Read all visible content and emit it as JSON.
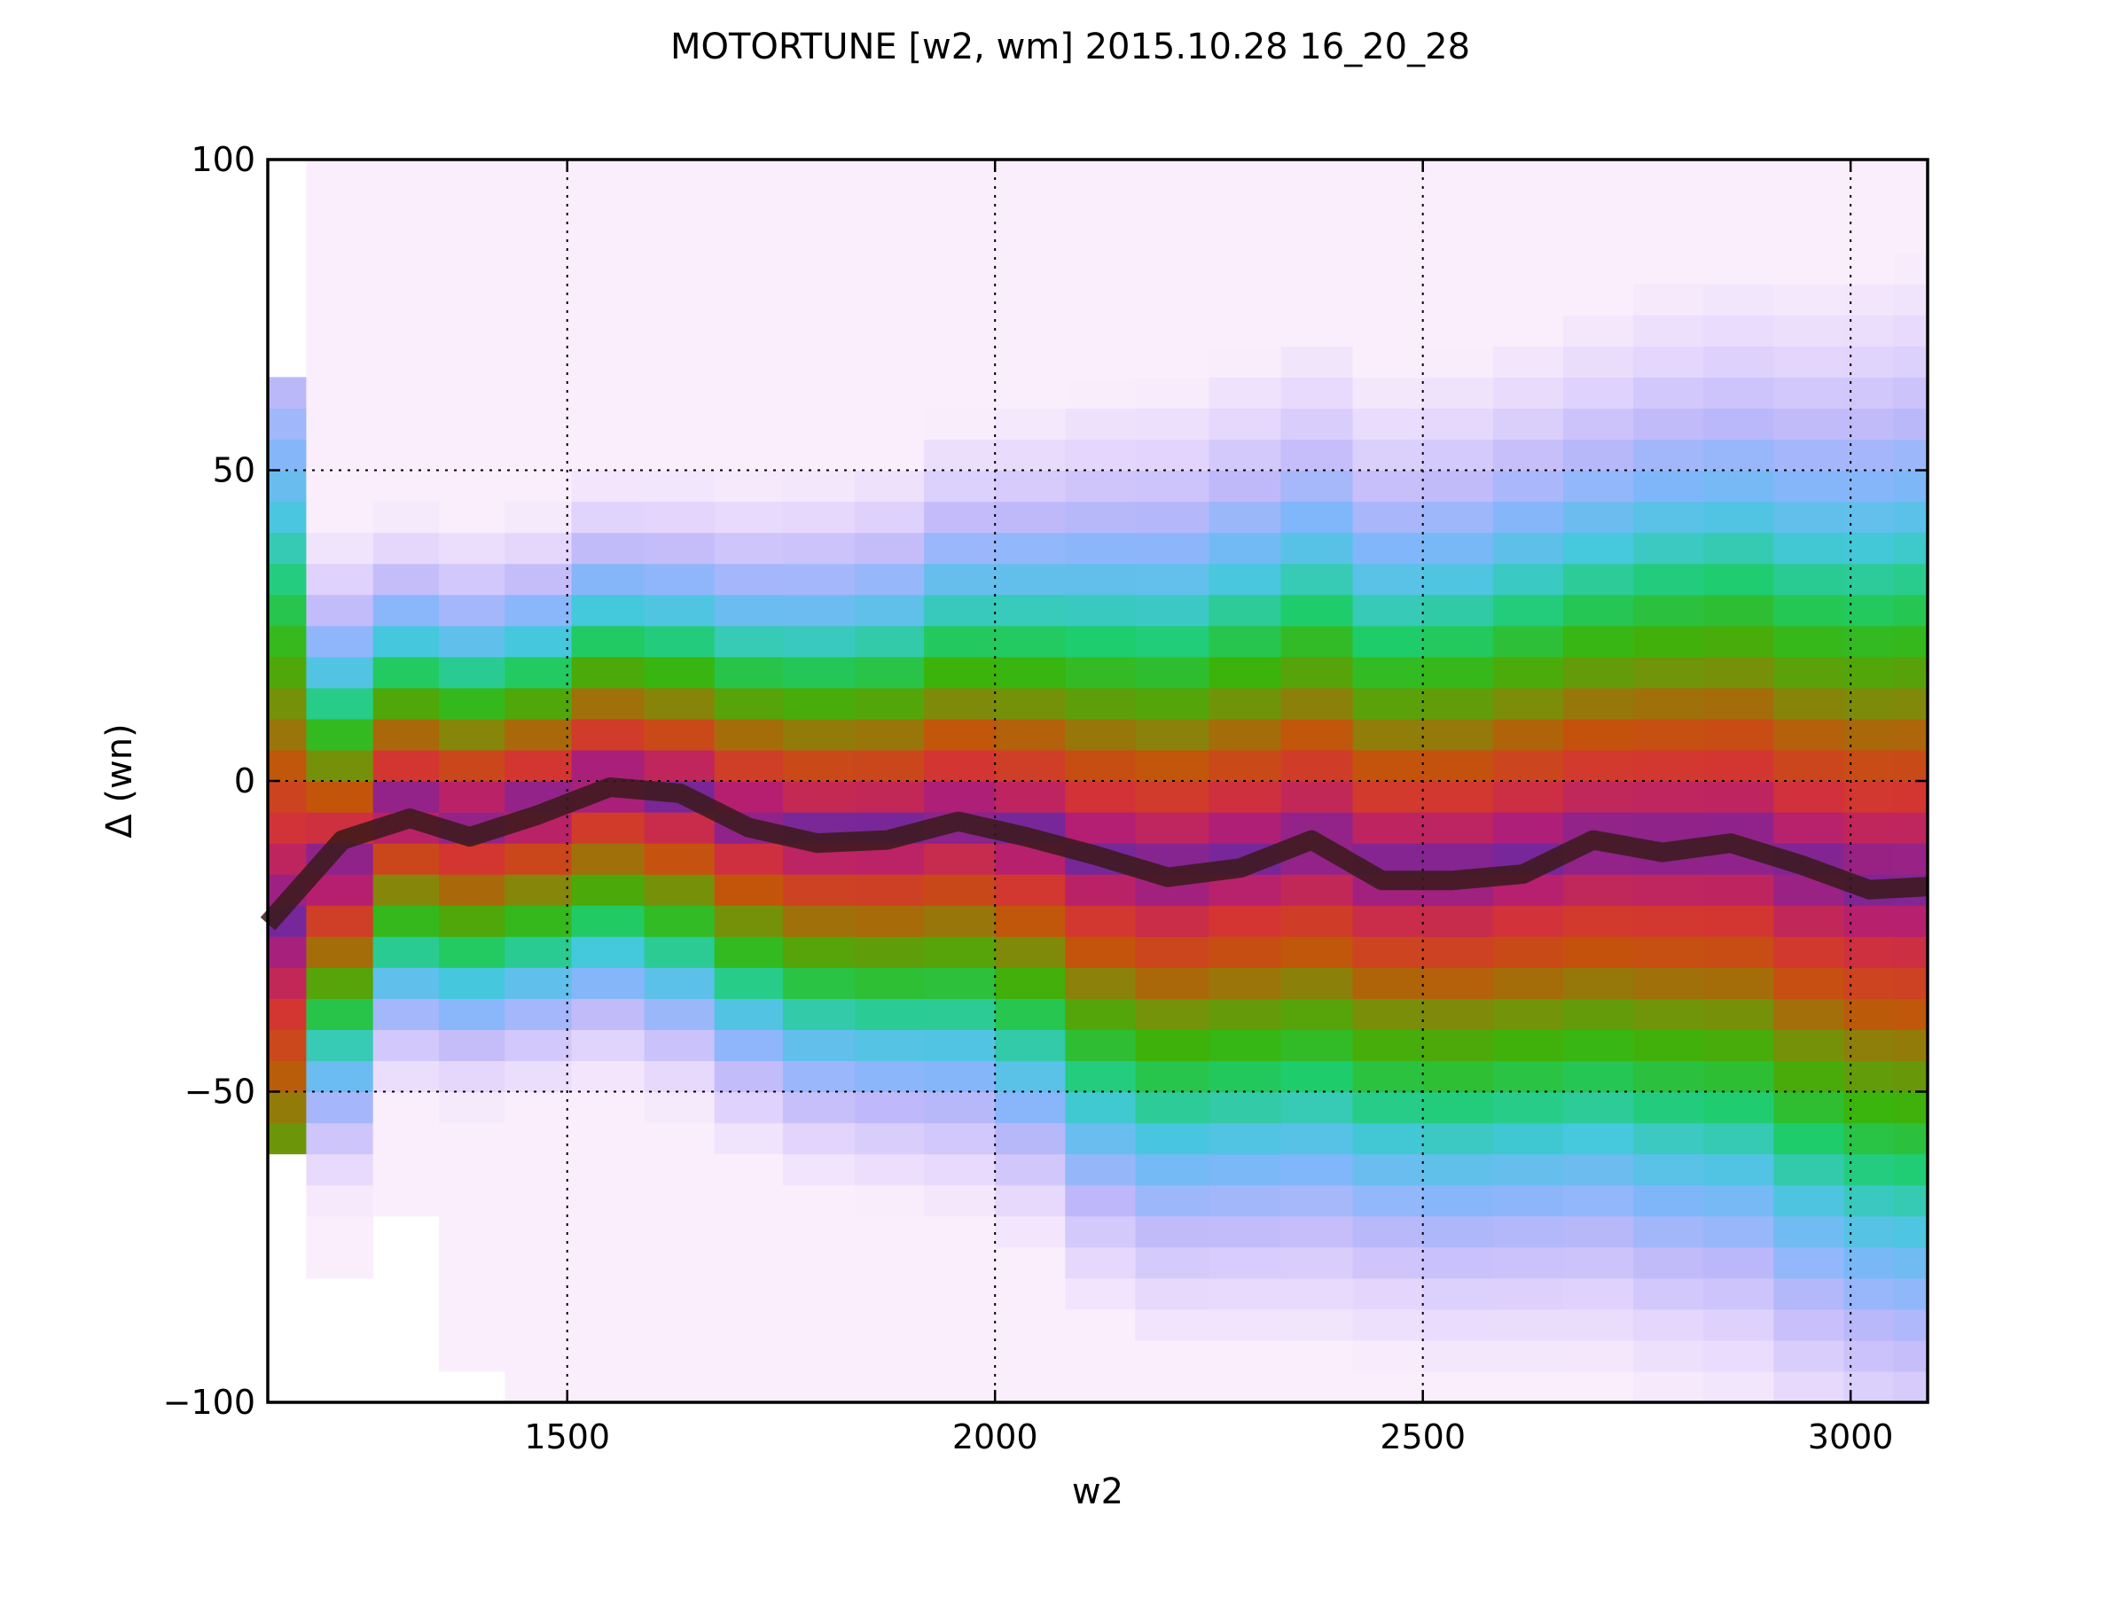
{
  "chart_data": {
    "type": "heatmap",
    "title": "MOTORTUNE [w2, wm] 2015.10.28 16_20_28",
    "xlabel": "w2",
    "ylabel": "Δ (wn)",
    "xlim": [
      1150,
      3090
    ],
    "ylim": [
      -100,
      100
    ],
    "xticks": [
      1500,
      2000,
      2500,
      3000
    ],
    "xtick_labels": [
      "1500",
      "2000",
      "2500",
      "3000"
    ],
    "yticks": [
      100,
      50,
      0,
      -50,
      -100
    ],
    "ytick_labels": [
      "100",
      "50",
      "0",
      "−50",
      "−100"
    ],
    "grid": true,
    "colormap": "white → lavender → blue → cyan → green → olive → orange → red → crimson → purple",
    "heatmap_columns": [
      {
        "x0": 1150,
        "x1": 1195,
        "lo": -58,
        "hi": 66,
        "half": 115,
        "c": -22
      },
      {
        "x0": 1195,
        "x1": 1273,
        "lo": -82,
        "hi": 98,
        "half": 55,
        "c": -14
      },
      {
        "x0": 1273,
        "x1": 1350,
        "lo": -72,
        "hi": 98,
        "half": 48,
        "c": -4
      },
      {
        "x0": 1350,
        "x1": 1427,
        "lo": -94,
        "hi": 98,
        "half": 48,
        "c": -6
      },
      {
        "x0": 1427,
        "x1": 1505,
        "lo": -100,
        "hi": 98,
        "half": 48,
        "c": -4
      },
      {
        "x0": 1505,
        "x1": 1590,
        "lo": -100,
        "hi": 100,
        "half": 50,
        "c": 0
      },
      {
        "x0": 1590,
        "x1": 1672,
        "lo": -100,
        "hi": 100,
        "half": 52,
        "c": -2
      },
      {
        "x0": 1672,
        "x1": 1752,
        "lo": -100,
        "hi": 100,
        "half": 55,
        "c": -6
      },
      {
        "x0": 1752,
        "x1": 1836,
        "lo": -100,
        "hi": 100,
        "half": 58,
        "c": -8
      },
      {
        "x0": 1836,
        "x1": 1917,
        "lo": -100,
        "hi": 100,
        "half": 60,
        "c": -8
      },
      {
        "x0": 1917,
        "x1": 2000,
        "lo": -100,
        "hi": 100,
        "half": 64,
        "c": -6
      },
      {
        "x0": 2000,
        "x1": 2082,
        "lo": -100,
        "hi": 100,
        "half": 68,
        "c": -8
      },
      {
        "x0": 2082,
        "x1": 2164,
        "lo": -100,
        "hi": 100,
        "half": 75,
        "c": -12
      },
      {
        "x0": 2164,
        "x1": 2250,
        "lo": -100,
        "hi": 100,
        "half": 78,
        "c": -14
      },
      {
        "x0": 2250,
        "x1": 2334,
        "lo": -100,
        "hi": 100,
        "half": 80,
        "c": -12
      },
      {
        "x0": 2334,
        "x1": 2418,
        "lo": -100,
        "hi": 100,
        "half": 82,
        "c": -10
      },
      {
        "x0": 2418,
        "x1": 2500,
        "lo": -100,
        "hi": 100,
        "half": 80,
        "c": -14
      },
      {
        "x0": 2500,
        "x1": 2582,
        "lo": -100,
        "hi": 100,
        "half": 82,
        "c": -14
      },
      {
        "x0": 2582,
        "x1": 2664,
        "lo": -100,
        "hi": 100,
        "half": 84,
        "c": -12
      },
      {
        "x0": 2664,
        "x1": 2746,
        "lo": -100,
        "hi": 100,
        "half": 86,
        "c": -10
      },
      {
        "x0": 2746,
        "x1": 2828,
        "lo": -100,
        "hi": 100,
        "half": 90,
        "c": -10
      },
      {
        "x0": 2828,
        "x1": 2910,
        "lo": -100,
        "hi": 100,
        "half": 92,
        "c": -10
      },
      {
        "x0": 2910,
        "x1": 2992,
        "lo": -100,
        "hi": 100,
        "half": 95,
        "c": -14
      },
      {
        "x0": 2992,
        "x1": 3050,
        "lo": -100,
        "hi": 100,
        "half": 98,
        "c": -16
      },
      {
        "x0": 3050,
        "x1": 3090,
        "lo": -100,
        "hi": 100,
        "half": 100,
        "c": -16
      }
    ],
    "series": [
      {
        "color": "#3a1a1a",
        "x": [
          1150,
          1237,
          1316,
          1386,
          1465,
          1550,
          1632,
          1712,
          1792,
          1874,
          1957,
          2037,
          2118,
          2202,
          2287,
          2370,
          2452,
          2535,
          2617,
          2699,
          2780,
          2860,
          2942,
          3022,
          3090
        ],
        "y": [
          -23,
          -9.5,
          -6,
          -9,
          -5.5,
          -1,
          -2,
          -7.5,
          -10,
          -9.5,
          -6.5,
          -9,
          -12,
          -15.5,
          -14,
          -9.5,
          -16,
          -16,
          -15,
          -9.5,
          -11.5,
          -10,
          -13.5,
          -17.5,
          -17
        ]
      }
    ]
  }
}
